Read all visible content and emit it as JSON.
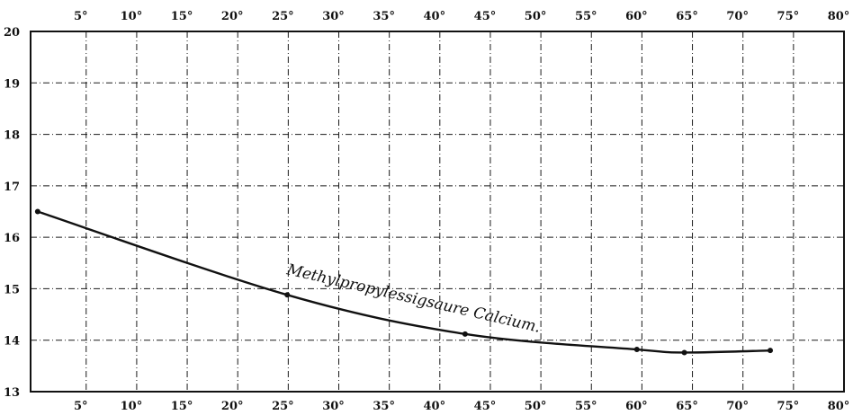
{
  "chart_data": {
    "type": "line",
    "title": "",
    "xlabel": "",
    "ylabel": "",
    "xlim": [
      -0.5,
      80
    ],
    "ylim": [
      13,
      20
    ],
    "x_ticks": [
      5,
      10,
      15,
      20,
      25,
      30,
      35,
      40,
      45,
      50,
      55,
      60,
      65,
      70,
      75,
      80
    ],
    "x_tick_labels_top": [
      "5°",
      "10°",
      "15°",
      "20°",
      "25°",
      "30°",
      "35°",
      "40°",
      "45°",
      "50°",
      "55°",
      "60°",
      "65°",
      "70°",
      "75°",
      "80°"
    ],
    "x_tick_labels_bottom": [
      "5°",
      "10°",
      "15°",
      "20°",
      "25°",
      "30°",
      "35°",
      "40°",
      "45°",
      "50°",
      "55°",
      "60°",
      "65°",
      "70°",
      "75°",
      "80°"
    ],
    "y_ticks": [
      13,
      14,
      15,
      16,
      17,
      18,
      19,
      20
    ],
    "y_tick_labels": [
      "13",
      "14",
      "15",
      "16",
      "17",
      "18",
      "19",
      "20"
    ],
    "grid": true,
    "series": [
      {
        "name": "Methylpropylessigsaure Calcium.",
        "x": [
          0.2,
          24.9,
          42.5,
          59.5,
          64.2,
          72.7
        ],
        "y": [
          16.5,
          14.88,
          14.12,
          13.82,
          13.76,
          13.8
        ]
      }
    ]
  }
}
